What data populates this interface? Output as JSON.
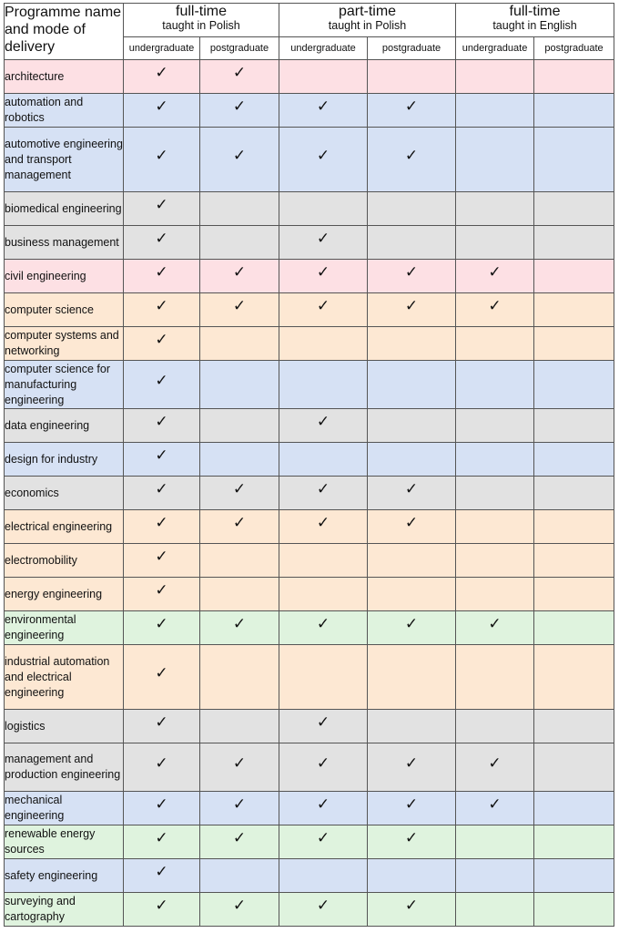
{
  "header": {
    "corner_label": "Programme name and mode of delivery",
    "groups": [
      {
        "mode": "full-time",
        "language": "taught in Polish"
      },
      {
        "mode": "part-time",
        "language": "taught in Polish"
      },
      {
        "mode": "full-time",
        "language": "taught in English"
      }
    ],
    "levels": [
      "undergraduate",
      "postgraduate",
      "undergraduate",
      "postgraduate",
      "undergraduate",
      "postgraduate"
    ]
  },
  "check_symbol": "✓",
  "colors": {
    "pink": "#fde0e4",
    "blue": "#d6e1f4",
    "grey": "#e2e2e2",
    "orange": "#fde8d3",
    "green": "#dff3de"
  },
  "programmes": [
    {
      "name": "architecture",
      "color": "pink",
      "offered": [
        true,
        true,
        false,
        false,
        false,
        false
      ]
    },
    {
      "name": "automation and robotics",
      "color": "blue",
      "offered": [
        true,
        true,
        true,
        true,
        false,
        false
      ]
    },
    {
      "name": "automotive engineering and transport management",
      "color": "blue",
      "offered": [
        true,
        true,
        true,
        true,
        false,
        false
      ]
    },
    {
      "name": "biomedical engineering",
      "color": "grey",
      "offered": [
        true,
        false,
        false,
        false,
        false,
        false
      ]
    },
    {
      "name": "business management",
      "color": "grey",
      "offered": [
        true,
        false,
        true,
        false,
        false,
        false
      ]
    },
    {
      "name": "civil engineering",
      "color": "pink",
      "offered": [
        true,
        true,
        true,
        true,
        true,
        false
      ]
    },
    {
      "name": "computer science",
      "color": "orange",
      "offered": [
        true,
        true,
        true,
        true,
        true,
        false
      ]
    },
    {
      "name": "computer systems and networking",
      "color": "orange",
      "offered": [
        true,
        false,
        false,
        false,
        false,
        false
      ]
    },
    {
      "name": "computer science for manufacturing engineering",
      "color": "blue",
      "offered": [
        true,
        false,
        false,
        false,
        false,
        false
      ]
    },
    {
      "name": "data engineering",
      "color": "grey",
      "offered": [
        true,
        false,
        true,
        false,
        false,
        false
      ]
    },
    {
      "name": "design for industry",
      "color": "blue",
      "offered": [
        true,
        false,
        false,
        false,
        false,
        false
      ]
    },
    {
      "name": "economics",
      "color": "grey",
      "offered": [
        true,
        true,
        true,
        true,
        false,
        false
      ]
    },
    {
      "name": "electrical engineering",
      "color": "orange",
      "offered": [
        true,
        true,
        true,
        true,
        false,
        false
      ]
    },
    {
      "name": "electromobility",
      "color": "orange",
      "offered": [
        true,
        false,
        false,
        false,
        false,
        false
      ]
    },
    {
      "name": "energy engineering",
      "color": "orange",
      "offered": [
        true,
        false,
        false,
        false,
        false,
        false
      ]
    },
    {
      "name": "environmental engineering",
      "color": "green",
      "offered": [
        true,
        true,
        true,
        true,
        true,
        false
      ]
    },
    {
      "name": "industrial automation and electrical engineering",
      "color": "orange",
      "offered": [
        true,
        false,
        false,
        false,
        false,
        false
      ]
    },
    {
      "name": "logistics",
      "color": "grey",
      "offered": [
        true,
        false,
        true,
        false,
        false,
        false
      ]
    },
    {
      "name": "management and production engineering",
      "color": "grey",
      "offered": [
        true,
        true,
        true,
        true,
        true,
        false
      ]
    },
    {
      "name": "mechanical engineering",
      "color": "blue",
      "offered": [
        true,
        true,
        true,
        true,
        true,
        false
      ]
    },
    {
      "name": "renewable energy sources",
      "color": "green",
      "offered": [
        true,
        true,
        true,
        true,
        false,
        false
      ]
    },
    {
      "name": "safety engineering",
      "color": "blue",
      "offered": [
        true,
        false,
        false,
        false,
        false,
        false
      ]
    },
    {
      "name": "surveying and cartography",
      "color": "green",
      "offered": [
        true,
        true,
        true,
        true,
        false,
        false
      ]
    }
  ]
}
